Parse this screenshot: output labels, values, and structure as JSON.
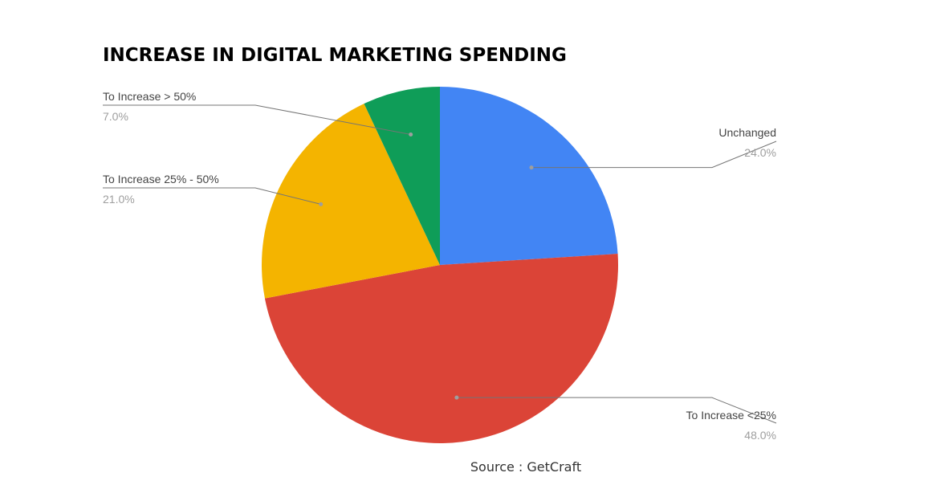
{
  "chart_data": {
    "type": "pie",
    "title": "INCREASE IN DIGITAL MARKETING SPENDING",
    "source": "Source : GetCraft",
    "slices": [
      {
        "label": "Unchanged",
        "value": 24.0,
        "value_label": "24.0%",
        "color": "#4285F4"
      },
      {
        "label": "To Increase <25%",
        "value": 48.0,
        "value_label": "48.0%",
        "color": "#DB4437"
      },
      {
        "label": "To Increase 25% - 50%",
        "value": 21.0,
        "value_label": "21.0%",
        "color": "#F4B400"
      },
      {
        "label": "To Increase > 50%",
        "value": 7.0,
        "value_label": "7.0%",
        "color": "#0F9D58"
      }
    ],
    "start_angle": "12 o'clock",
    "direction": "clockwise",
    "label_style": "callout lines",
    "leader_line_color": "#757575"
  }
}
